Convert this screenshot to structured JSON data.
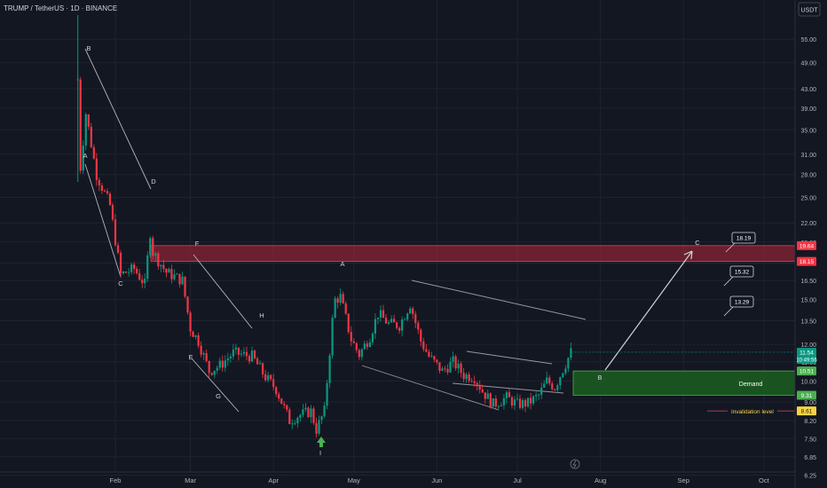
{
  "header": {
    "symbol_line": "TRUMP / TetherUS · 1D · BINANCE"
  },
  "price_axis": {
    "currency": "USDT",
    "ticks": [
      "55.00",
      "49.00",
      "43.00",
      "39.00",
      "35.00",
      "31.00",
      "28.00",
      "25.00",
      "22.00",
      "20.00",
      "18.00",
      "16.50",
      "15.00",
      "13.50",
      "12.00",
      "11.00",
      "10.00",
      "9.00",
      "8.20",
      "7.50",
      "6.85",
      "6.25"
    ],
    "markers": [
      {
        "label": "19.64",
        "color": "#f23645"
      },
      {
        "label": "18.15",
        "color": "#f23645"
      },
      {
        "label": "11.54",
        "sub": "10:49:56",
        "color": "#089981"
      },
      {
        "label": "10.51",
        "color": "#4caf50"
      },
      {
        "label": "9.31",
        "color": "#4caf50"
      },
      {
        "label": "8.61",
        "color": "#f5d442",
        "text_color": "#131722"
      }
    ]
  },
  "time_axis": [
    "Feb",
    "Mar",
    "Apr",
    "May",
    "Jun",
    "Jul",
    "Aug",
    "Sep",
    "Oct"
  ],
  "zones": {
    "resistance": {
      "low": 18.15,
      "high": 19.64,
      "color": "#b2283a"
    },
    "demand": {
      "low": 9.31,
      "high": 10.51,
      "label": "Demand",
      "color": "#1b5e20"
    }
  },
  "invalidation": {
    "label": "invalidation level",
    "price": 8.61
  },
  "wave_labels": [
    "A",
    "B",
    "C",
    "D",
    "E",
    "F",
    "G",
    "H",
    "A",
    "I",
    "B",
    "C"
  ],
  "targets": [
    "18.19",
    "15.32",
    "13.29"
  ],
  "chart_data": {
    "type": "candlestick",
    "title": "TRUMP / TetherUS · 1D · BINANCE",
    "y_unit": "USDT",
    "yscale": "log",
    "ylim": [
      6.1,
      64
    ],
    "price_path": [
      [
        "Jan 18",
        45
      ],
      [
        "Jan 19",
        29
      ],
      [
        "Jan 21",
        38
      ],
      [
        "Jan 25",
        28
      ],
      [
        "Jan 30",
        24
      ],
      [
        "Feb 03",
        17
      ],
      [
        "Feb 08",
        17.5
      ],
      [
        "Feb 12",
        16.2
      ],
      [
        "Feb 14",
        21
      ],
      [
        "Feb 15",
        19
      ],
      [
        "Feb 20",
        17.2
      ],
      [
        "Feb 26",
        16.5
      ],
      [
        "Mar 01",
        13
      ],
      [
        "Mar 04",
        12.2
      ],
      [
        "Mar 08",
        10.5
      ],
      [
        "Mar 12",
        10.8
      ],
      [
        "Mar 17",
        11.5
      ],
      [
        "Mar 24",
        11.3
      ],
      [
        "Mar 29",
        10.2
      ],
      [
        "Apr 02",
        9.6
      ],
      [
        "Apr 07",
        8.2
      ],
      [
        "Apr 10",
        8.4
      ],
      [
        "Apr 15",
        8.6
      ],
      [
        "Apr 17",
        7.85
      ],
      [
        "Apr 20",
        8.6
      ],
      [
        "Apr 23",
        13.5
      ],
      [
        "Apr 24",
        15
      ],
      [
        "Apr 26",
        15.2
      ],
      [
        "Apr 30",
        12.3
      ],
      [
        "May 03",
        11.4
      ],
      [
        "May 07",
        12.5
      ],
      [
        "May 10",
        14
      ],
      [
        "May 14",
        13.3
      ],
      [
        "May 18",
        13.2
      ],
      [
        "May 22",
        14.7
      ],
      [
        "May 26",
        12.2
      ],
      [
        "May 29",
        11.3
      ],
      [
        "Jun 03",
        10.5
      ],
      [
        "Jun 07",
        11
      ],
      [
        "Jun 11",
        10.3
      ],
      [
        "Jun 15",
        10.2
      ],
      [
        "Jun 18",
        9.5
      ],
      [
        "Jun 22",
        8.9
      ],
      [
        "Jun 27",
        9.2
      ],
      [
        "Jul 01",
        8.9
      ],
      [
        "Jul 05",
        8.95
      ],
      [
        "Jul 09",
        9.3
      ],
      [
        "Jul 12",
        10
      ],
      [
        "Jul 15",
        9.7
      ],
      [
        "Jul 18",
        10.6
      ],
      [
        "Jul 21",
        11.54
      ]
    ],
    "last_price": 11.54
  }
}
